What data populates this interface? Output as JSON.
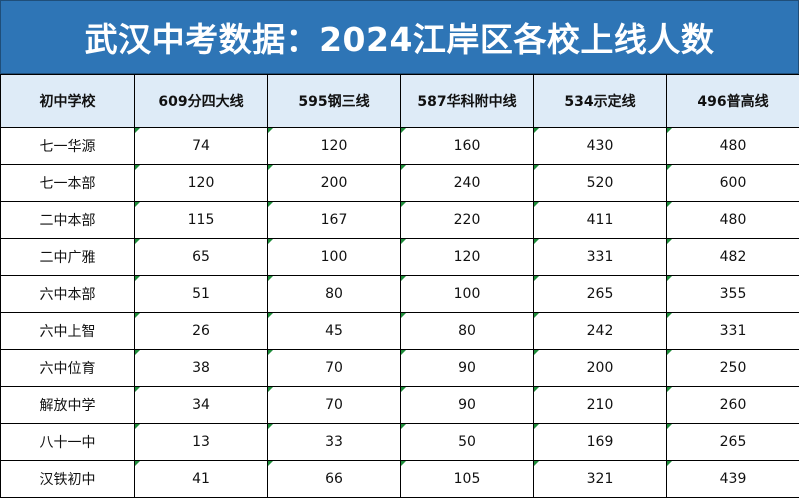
{
  "title": "武汉中考数据：2024江岸区各校上线人数",
  "table": {
    "headers": [
      "初中学校",
      "609分四大线",
      "595钢三线",
      "587华科附中线",
      "534示定线",
      "496普高线"
    ],
    "rows": [
      [
        "七一华源",
        "74",
        "120",
        "160",
        "430",
        "480"
      ],
      [
        "七一本部",
        "120",
        "200",
        "240",
        "520",
        "600"
      ],
      [
        "二中本部",
        "115",
        "167",
        "220",
        "411",
        "480"
      ],
      [
        "二中广雅",
        "65",
        "100",
        "120",
        "331",
        "482"
      ],
      [
        "六中本部",
        "51",
        "80",
        "100",
        "265",
        "355"
      ],
      [
        "六中上智",
        "26",
        "45",
        "80",
        "242",
        "331"
      ],
      [
        "六中位育",
        "38",
        "70",
        "90",
        "200",
        "250"
      ],
      [
        "解放中学",
        "34",
        "70",
        "90",
        "210",
        "260"
      ],
      [
        "八十一中",
        "13",
        "33",
        "50",
        "169",
        "265"
      ],
      [
        "汉铁初中",
        "41",
        "66",
        "105",
        "321",
        "439"
      ]
    ]
  },
  "colors": {
    "title_background": "#2e75b6",
    "header_background": "#deebf7",
    "cell_marker": "#1e8c3a"
  }
}
